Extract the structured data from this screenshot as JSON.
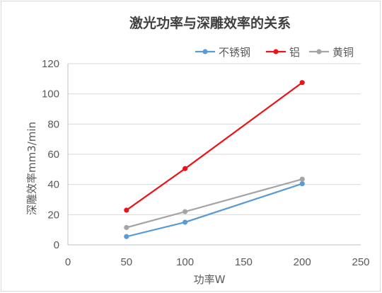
{
  "chart_data": {
    "type": "line",
    "title": "激光功率与深雕效率的关系",
    "xlabel": "功率W",
    "ylabel": "深雕效率mm3/min",
    "xlim": [
      0,
      250
    ],
    "ylim": [
      0,
      120
    ],
    "xticks": [
      0,
      50,
      100,
      150,
      200,
      250
    ],
    "yticks": [
      0,
      20,
      40,
      60,
      80,
      100,
      120
    ],
    "grid": "horizontal",
    "legend_position": "top-right",
    "series": [
      {
        "name": "不锈钢",
        "color": "#5b9bd5",
        "x": [
          50,
          100,
          200
        ],
        "y": [
          5.5,
          15,
          40.5
        ]
      },
      {
        "name": "铝",
        "color": "#e8151b",
        "x": [
          50,
          100,
          200
        ],
        "y": [
          23,
          50.5,
          107.5
        ]
      },
      {
        "name": "黄铜",
        "color": "#a5a5a5",
        "x": [
          50,
          100,
          200
        ],
        "y": [
          11.5,
          22,
          43.5
        ]
      }
    ]
  }
}
